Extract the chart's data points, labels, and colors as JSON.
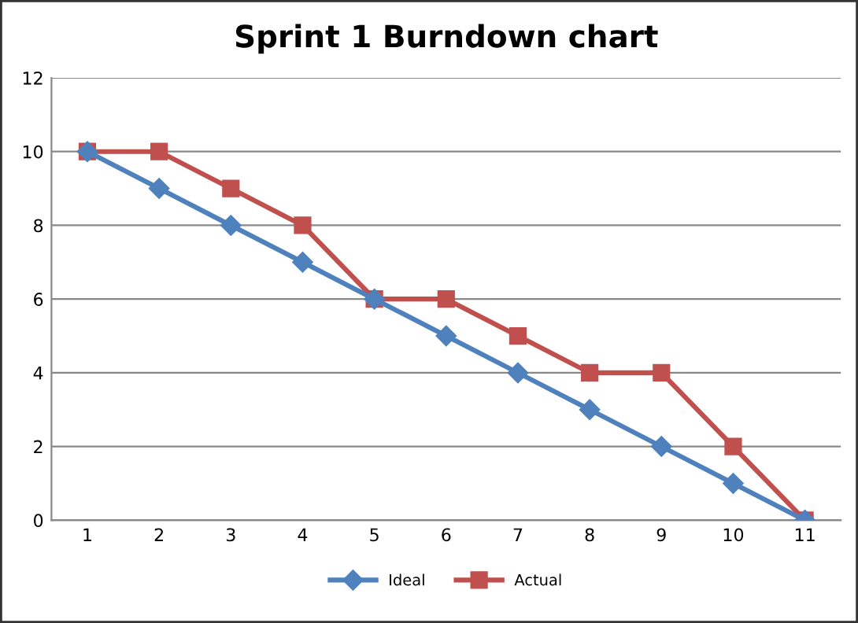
{
  "chart_data": {
    "type": "line",
    "title": "Sprint 1 Burndown chart",
    "categories": [
      "1",
      "2",
      "3",
      "4",
      "5",
      "6",
      "7",
      "8",
      "9",
      "10",
      "11"
    ],
    "series": [
      {
        "name": "Ideal",
        "color": "#4f81bd",
        "marker": "diamond",
        "values": [
          10,
          9,
          8,
          7,
          6,
          5,
          4,
          3,
          2,
          1,
          0
        ]
      },
      {
        "name": "Actual",
        "color": "#c0504d",
        "marker": "square",
        "values": [
          10,
          10,
          9,
          8,
          6,
          6,
          5,
          4,
          4,
          2,
          0
        ]
      }
    ],
    "ylim": [
      0,
      12
    ],
    "yticks": [
      0,
      2,
      4,
      6,
      8,
      10,
      12
    ],
    "grid": "y",
    "legend": "bottom",
    "line_style": "solid"
  }
}
